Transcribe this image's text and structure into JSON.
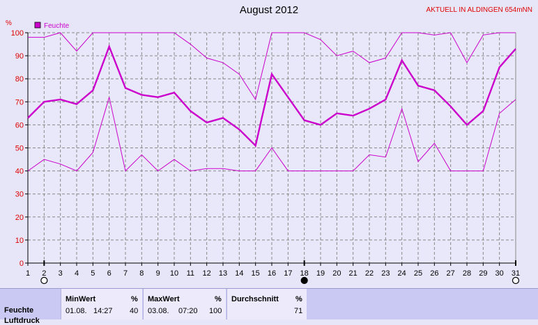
{
  "chart_data": {
    "type": "line",
    "title": "August 2012",
    "station_label": "AKTUELL IN ALDINGEN 654mNN",
    "ylabel": "%",
    "ylim": [
      0,
      100
    ],
    "yticks": [
      0,
      10,
      20,
      30,
      40,
      50,
      60,
      70,
      80,
      90,
      100
    ],
    "x": [
      1,
      2,
      3,
      4,
      5,
      6,
      7,
      8,
      9,
      10,
      11,
      12,
      13,
      14,
      15,
      16,
      17,
      18,
      19,
      20,
      21,
      22,
      23,
      24,
      25,
      26,
      27,
      28,
      29,
      30,
      31
    ],
    "xlim": [
      1,
      31
    ],
    "grid": true,
    "legend": "top-left",
    "legend_label": "Feuchte",
    "series": [
      {
        "name": "Feuchte",
        "role": "mean",
        "color": "#cc00cc",
        "values": [
          63,
          70,
          71,
          69,
          75,
          94,
          76,
          73,
          72,
          74,
          66,
          61,
          63,
          58,
          51,
          82,
          72,
          62,
          60,
          65,
          64,
          67,
          71,
          88,
          77,
          75,
          68,
          60,
          66,
          85,
          93
        ]
      },
      {
        "role": "max",
        "color": "#cc00cc",
        "values": [
          98,
          98,
          100,
          92,
          100,
          100,
          100,
          100,
          100,
          100,
          95,
          89,
          87,
          82,
          71,
          100,
          100,
          100,
          97,
          90,
          92,
          87,
          89,
          100,
          100,
          99,
          100,
          87,
          99,
          100,
          100
        ]
      },
      {
        "role": "min",
        "color": "#cc00cc",
        "values": [
          40,
          45,
          43,
          40,
          48,
          72,
          40,
          47,
          40,
          45,
          40,
          41,
          41,
          40,
          40,
          50,
          40,
          40,
          40,
          40,
          40,
          47,
          46,
          67,
          44,
          52,
          40,
          40,
          40,
          65,
          71
        ]
      }
    ],
    "moon_markers": [
      {
        "day": 2,
        "phase": "full-moon-icon"
      },
      {
        "day": 18,
        "phase": "new-moon-icon"
      },
      {
        "day": 31,
        "phase": "full-moon-icon"
      }
    ]
  },
  "stats": {
    "row_labels": [
      "Feuchte",
      "Luftdruck"
    ],
    "min": {
      "header": "MinWert",
      "unit": "%",
      "date": "01.08.",
      "time": "14:27",
      "value": "40"
    },
    "max": {
      "header": "MaxWert",
      "unit": "%",
      "date": "03.08.",
      "time": "07:20",
      "value": "100"
    },
    "avg": {
      "header": "Durchschnitt",
      "unit": "%",
      "value": "71"
    }
  }
}
